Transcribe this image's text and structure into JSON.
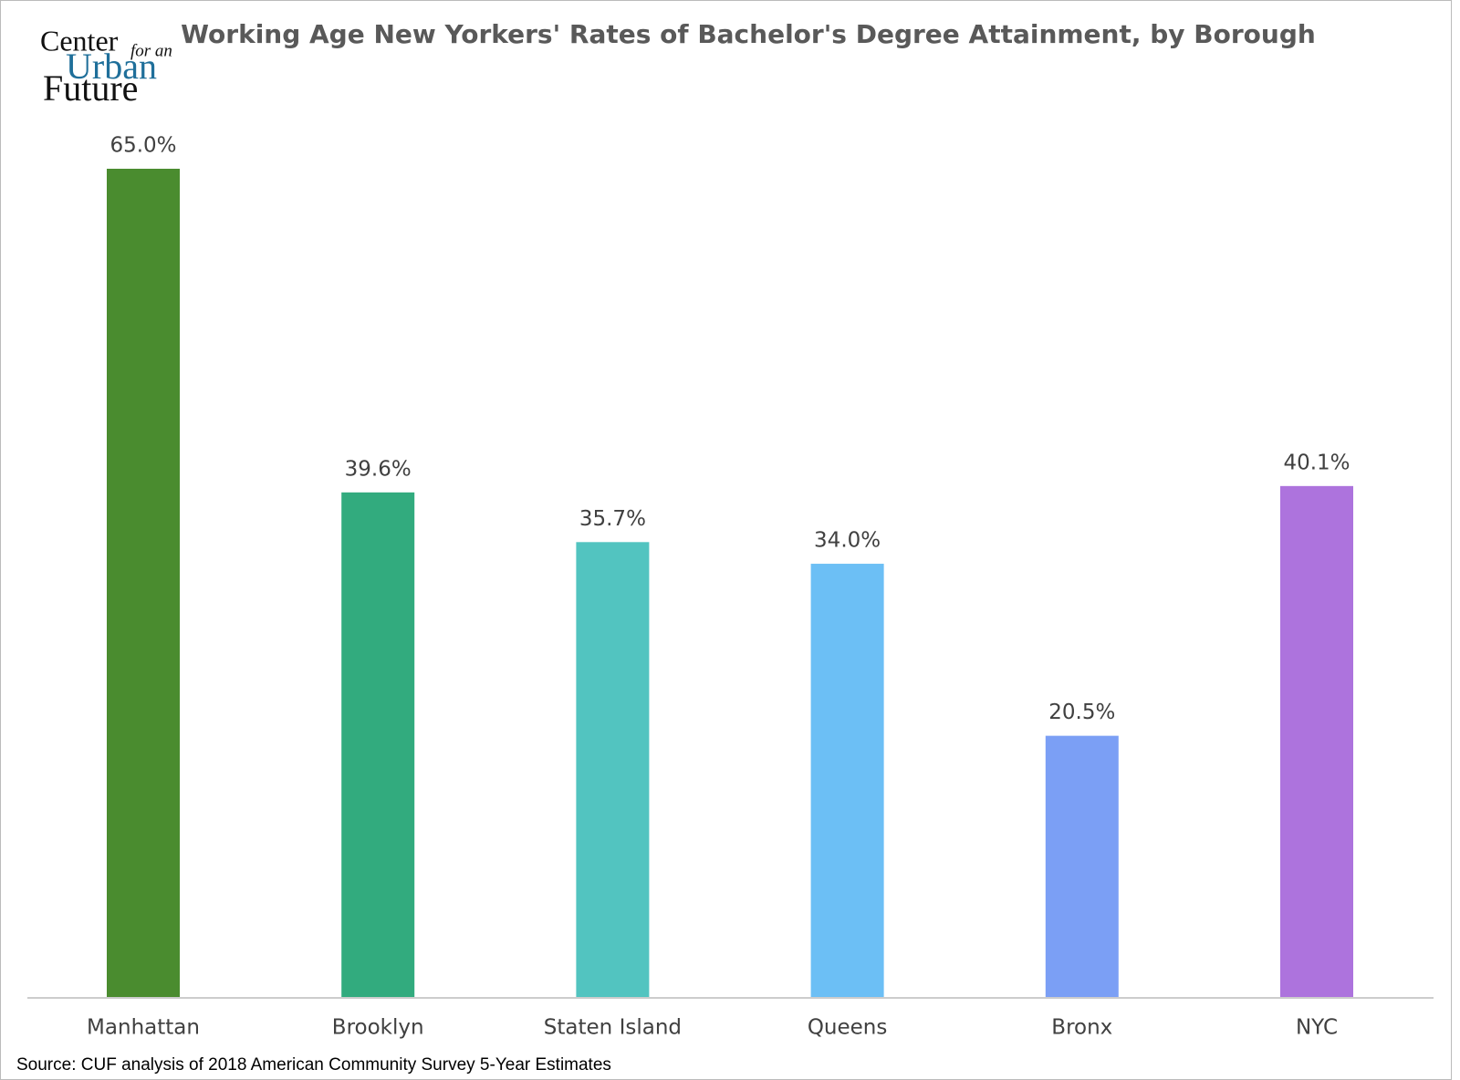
{
  "logo": {
    "line1": "Center",
    "line1_small": "for an",
    "line2": "Urban",
    "line3": "Future"
  },
  "chart_data": {
    "type": "bar",
    "title": "Working Age New Yorkers' Rates of Bachelor's Degree Attainment, by Borough",
    "categories": [
      "Manhattan",
      "Brooklyn",
      "Staten Island",
      "Queens",
      "Bronx",
      "NYC"
    ],
    "values": [
      65.0,
      39.6,
      35.7,
      34.0,
      20.5,
      40.1
    ],
    "value_labels": [
      "65.0%",
      "39.6%",
      "35.7%",
      "34.0%",
      "20.5%",
      "40.1%"
    ],
    "colors": [
      "#4a8c2f",
      "#32ab7e",
      "#52c4c0",
      "#6cbff5",
      "#7b9ff5",
      "#ad73dd"
    ],
    "source": "Source: CUF analysis of 2018 American Community Survey 5-Year Estimates"
  }
}
